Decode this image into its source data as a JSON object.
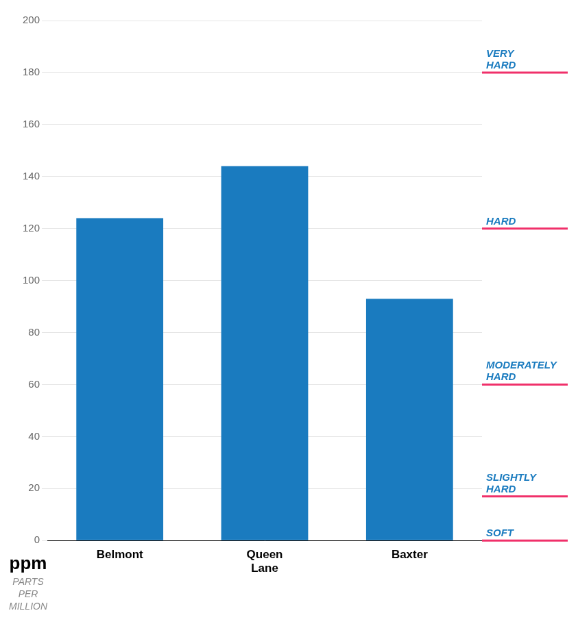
{
  "chart_data": {
    "type": "bar",
    "categories": [
      "Belmont",
      "Queen\nLane",
      "Baxter"
    ],
    "values": [
      124,
      144,
      93
    ],
    "color": "#1a7bbf",
    "ylim": [
      0,
      200
    ],
    "yticks": [
      0,
      20,
      40,
      60,
      80,
      100,
      120,
      140,
      160,
      180,
      200
    ],
    "grid": true,
    "ylabel": "ppm",
    "annotations": [
      {
        "y": 0,
        "text": "SOFT",
        "color": "#f0306a"
      },
      {
        "y": 17,
        "text": "SLIGHTLY\nHARD",
        "color": "#f0306a"
      },
      {
        "y": 60,
        "text": "MODERATELY\nHARD",
        "color": "#f0306a"
      },
      {
        "y": 120,
        "text": "HARD",
        "color": "#f0306a"
      },
      {
        "y": 180,
        "text": "VERY\nHARD",
        "color": "#f0306a"
      },
      {
        "text": "PARTS\nPER\nMILLION",
        "color": "#888888"
      }
    ]
  }
}
